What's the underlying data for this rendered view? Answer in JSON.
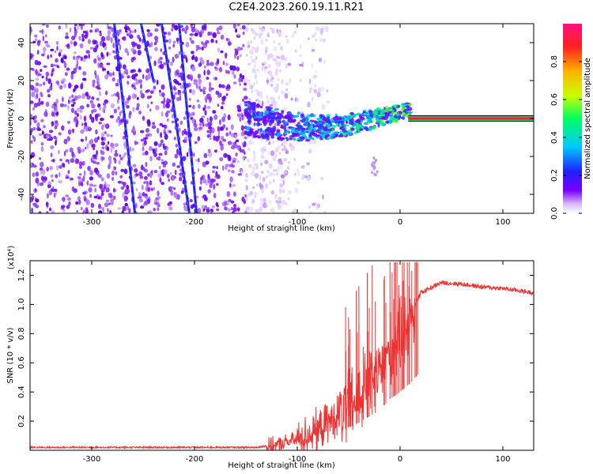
{
  "title": "C2E4.2023.260.19.11.R21",
  "chart_data": [
    {
      "type": "heatmap",
      "name": "spectrogram",
      "xlabel": "Height of straight line (km)",
      "ylabel": "Frequency (Hz)",
      "xlim": [
        -360,
        130
      ],
      "ylim": [
        -50,
        50
      ],
      "x_ticks": [
        -300,
        -200,
        -100,
        0,
        100
      ],
      "y_ticks": [
        -40,
        -20,
        0,
        20,
        40
      ],
      "colorbar": {
        "label": "Normalized spectral amplitude",
        "range": [
          0,
          1
        ],
        "ticks": [
          "0.0",
          "0.2",
          "0.4",
          "0.6",
          "0.8"
        ],
        "tick_values": [
          0.0,
          0.2,
          0.4,
          0.6,
          0.8
        ]
      },
      "features": {
        "carrier_line": {
          "x_start": 8,
          "x_end": 130,
          "frequency": 0
        },
        "noise_region_x": [
          -360,
          -110
        ],
        "signal_band_x": [
          -150,
          10
        ],
        "streaks": [
          {
            "x": [
              -278,
              -258
            ],
            "y": [
              50,
              -50
            ]
          },
          {
            "x": [
              -252,
              -240
            ],
            "y": [
              50,
              20
            ]
          },
          {
            "x": [
              -232,
              -205
            ],
            "y": [
              50,
              -50
            ]
          },
          {
            "x": [
              -215,
              -198
            ],
            "y": [
              50,
              -50
            ]
          }
        ]
      }
    },
    {
      "type": "line",
      "name": "snr",
      "xlabel": "Height of straight line (km)",
      "ylabel": "SNR (10 * v/v)",
      "y_multiplier_label": "(x10⁴)",
      "xlim": [
        -360,
        130
      ],
      "ylim": [
        0,
        1.3
      ],
      "x_ticks": [
        -300,
        -200,
        -100,
        0,
        100
      ],
      "y_ticks": [
        0.2,
        0.4,
        0.6,
        0.8,
        1.0,
        1.2
      ],
      "series": [
        {
          "name": "SNR",
          "color": "#ee3333",
          "x": [
            -360,
            -300,
            -200,
            -140,
            -120,
            -100,
            -80,
            -60,
            -40,
            -20,
            -10,
            0,
            10,
            20,
            40,
            60,
            80,
            100,
            130
          ],
          "y": [
            0.02,
            0.02,
            0.02,
            0.02,
            0.04,
            0.08,
            0.15,
            0.25,
            0.38,
            0.55,
            0.7,
            0.8,
            0.92,
            1.08,
            1.15,
            1.14,
            1.12,
            1.11,
            1.08
          ]
        }
      ]
    }
  ]
}
